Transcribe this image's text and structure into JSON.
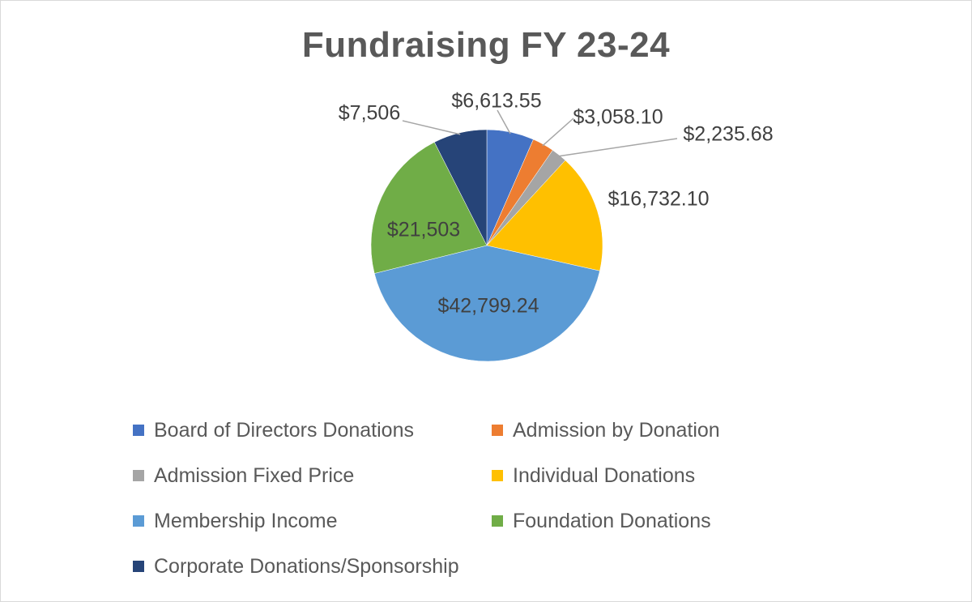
{
  "chart_data": {
    "type": "pie",
    "title": "Fundraising FY 23-24",
    "start_angle_deg": 0,
    "direction": "clockwise",
    "legend_position": "bottom",
    "slices": [
      {
        "name": "Board of Directors Donations",
        "value": 6613.55,
        "label": "$6,613.55",
        "color": "#4472c4"
      },
      {
        "name": "Admission by Donation",
        "value": 3058.1,
        "label": "$3,058.10",
        "color": "#ed7d31"
      },
      {
        "name": "Admission Fixed Price",
        "value": 2235.68,
        "label": "$2,235.68",
        "color": "#a5a5a5"
      },
      {
        "name": "Individual Donations",
        "value": 16732.1,
        "label": "$16,732.10",
        "color": "#ffc000"
      },
      {
        "name": "Membership Income",
        "value": 42799.24,
        "label": "$42,799.24",
        "color": "#5b9bd5"
      },
      {
        "name": "Foundation Donations",
        "value": 21503,
        "label": "$21,503",
        "color": "#70ad47"
      },
      {
        "name": "Corporate Donations/Sponsorship",
        "value": 7506,
        "label": "$7,506",
        "color": "#264478"
      }
    ]
  }
}
